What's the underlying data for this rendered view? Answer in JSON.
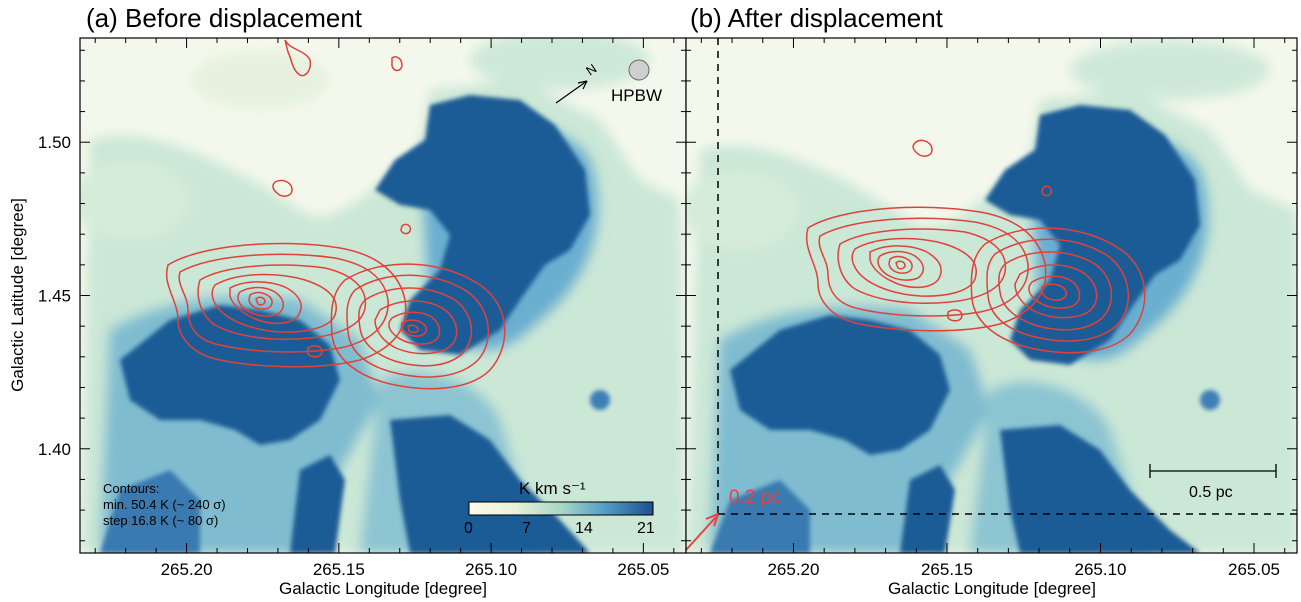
{
  "chart_data": [
    {
      "type": "heatmap",
      "panel_title": "(a) Before displacement",
      "xlabel": "Galactic Longitude [degree]",
      "ylabel": "Galactic Latitude [degree]",
      "xlim": [
        265.235,
        265.036
      ],
      "ylim": [
        1.366,
        1.534
      ],
      "x_ticks": [
        265.2,
        265.15,
        265.1,
        265.05
      ],
      "x_tick_labels": [
        "265.20",
        "265.15",
        "265.10",
        "265.05"
      ],
      "y_ticks": [
        1.4,
        1.45,
        1.5
      ],
      "y_tick_labels": [
        "1.40",
        "1.45",
        "1.50"
      ],
      "contour_peaks": [
        {
          "l": 265.175,
          "b": 1.453
        },
        {
          "l": 265.128,
          "b": 1.443
        }
      ],
      "annotations": {
        "hpbw_label": "HPBW",
        "north_label": "N",
        "contours_title": "Contours:",
        "contours_min": "min. 50.4 K (~ 240 σ)",
        "contours_step": "step 16.8 K (~ 80 σ)"
      },
      "colorbar": {
        "label": "K km s⁻¹",
        "range": [
          0,
          21
        ],
        "ticks": [
          "0",
          "7",
          "14",
          "21"
        ]
      }
    },
    {
      "type": "heatmap",
      "panel_title": "(b) After displacement",
      "xlabel": "Galactic Longitude [degree]",
      "xlim": [
        265.235,
        265.036
      ],
      "ylim": [
        1.366,
        1.534
      ],
      "x_ticks": [
        265.2,
        265.15,
        265.1,
        265.05
      ],
      "x_tick_labels": [
        "265.20",
        "265.15",
        "265.10",
        "265.05"
      ],
      "y_ticks": [
        1.4,
        1.45,
        1.5
      ],
      "contour_peaks": [
        {
          "l": 265.163,
          "b": 1.466
        },
        {
          "l": 265.118,
          "b": 1.454
        }
      ],
      "annotations": {
        "displacement_label": "0.2 pc",
        "scalebar_label": "0.5 pc"
      }
    }
  ],
  "colors": {
    "contour": "#e0413a",
    "dense": "#1f5b96",
    "mid": "#4b96c4",
    "light": "#a9d8cf",
    "background": "#f4f8ec",
    "arrow": "#e8413f"
  }
}
